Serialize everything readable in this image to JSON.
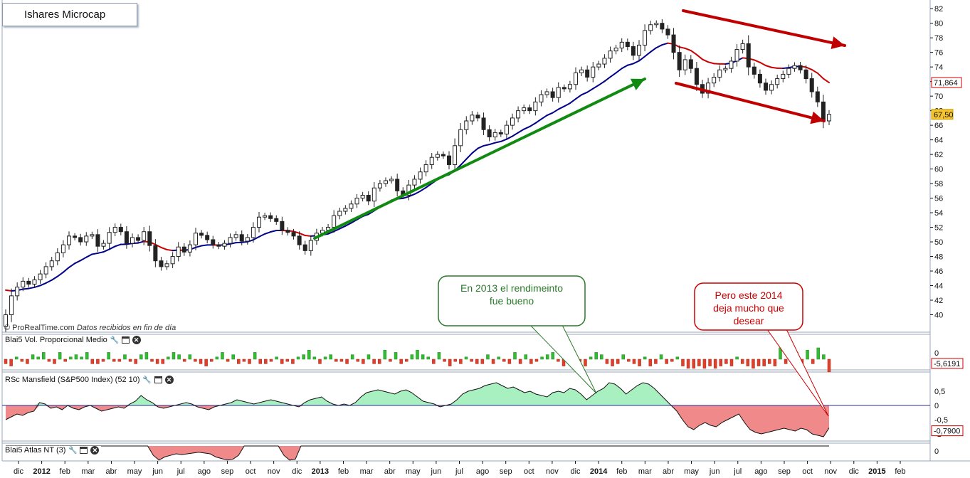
{
  "title": "Ishares Microcap",
  "watermark": {
    "brand": "© ProRealTime.com",
    "note": "Datos recibidos en fin de día"
  },
  "colors": {
    "up": "#ffffff",
    "down": "#222222",
    "ma_up": "#cc0000",
    "ma_down": "#00008b",
    "uptrend_arrow": "#108a10",
    "downtrend_arrows": "#c00000",
    "vol_pos": "#33bb33",
    "vol_neg": "#e0402a",
    "rsc_pos": "#a8f0c0",
    "rsc_neg": "#f08a8a",
    "callout_green": "#2a7a2a",
    "callout_red": "#cc0000"
  },
  "callouts": [
    {
      "text": "En 2013 el rendimeinto fue bueno",
      "color": "green"
    },
    {
      "text": "Pero este 2014 deja mucho que desear",
      "color": "red"
    }
  ],
  "panels": {
    "volume": {
      "label": "Blai5 Vol. Proporcional Medio",
      "zero_label": "0",
      "value_label": "-5,6191"
    },
    "rsc": {
      "label": "RSc Mansfield (S&P500 Index) (52 10)",
      "ticks": [
        "0,5",
        "0",
        "-0,5",
        "-1"
      ],
      "value_label": "-0,7900"
    },
    "atlas": {
      "label": "Blai5 Atlas NT (3)",
      "zero_label": "0"
    }
  },
  "price_labels": {
    "ma_value": "71,864",
    "last_close": "67,50"
  },
  "chart_data": [
    {
      "type": "candlestick",
      "title": "Ishares Microcap",
      "ylim": [
        38,
        82.8
      ],
      "yticks": [
        40,
        42,
        44,
        46,
        48,
        50,
        52,
        54,
        56,
        58,
        60,
        62,
        64,
        66,
        68,
        70,
        72,
        74,
        76,
        78,
        80,
        82
      ],
      "x_axis_labels": [
        "dic",
        "2012",
        "feb",
        "mar",
        "abr",
        "may",
        "jun",
        "jul",
        "ago",
        "sep",
        "oct",
        "nov",
        "dic",
        "2013",
        "feb",
        "mar",
        "abr",
        "may",
        "jun",
        "jul",
        "ago",
        "sep",
        "oct",
        "nov",
        "dic",
        "2014",
        "feb",
        "mar",
        "abr",
        "may",
        "jun",
        "jul",
        "ago",
        "sep",
        "oct",
        "nov",
        "dic",
        "2015",
        "feb"
      ],
      "bold_labels": [
        "2012",
        "2013",
        "2014",
        "2015"
      ],
      "closes": [
        40.0,
        42.6,
        43.8,
        44.6,
        44.2,
        44.8,
        45.6,
        46.6,
        47.4,
        48.5,
        49.6,
        50.8,
        50.6,
        50.0,
        50.8,
        51.0,
        49.4,
        49.8,
        51.3,
        52.0,
        51.4,
        49.8,
        50.6,
        50.2,
        51.4,
        49.5,
        47.4,
        46.6,
        47.0,
        48.0,
        49.3,
        48.6,
        49.6,
        51.2,
        50.9,
        50.3,
        49.6,
        49.4,
        49.8,
        50.6,
        51.0,
        50.1,
        50.6,
        52.0,
        53.4,
        53.6,
        53.2,
        52.8,
        51.6,
        51.3,
        50.8,
        49.6,
        48.8,
        50.2,
        51.2,
        51.6,
        52.0,
        53.6,
        54.2,
        54.6,
        55.2,
        56.0,
        56.4,
        55.6,
        57.4,
        58.0,
        58.4,
        58.6,
        57.0,
        56.4,
        57.8,
        58.6,
        59.6,
        60.6,
        61.6,
        62.0,
        61.8,
        60.6,
        63.2,
        65.4,
        66.6,
        67.4,
        67.0,
        65.4,
        64.4,
        65.0,
        64.8,
        66.0,
        67.0,
        68.0,
        68.4,
        68.0,
        69.2,
        70.2,
        70.6,
        69.8,
        71.2,
        71.0,
        71.6,
        73.2,
        73.6,
        72.6,
        74.0,
        74.4,
        75.2,
        76.2,
        76.6,
        77.4,
        76.8,
        75.6,
        77.0,
        79.0,
        79.8,
        80.0,
        79.2,
        78.4,
        76.0,
        73.6,
        75.0,
        73.8,
        71.6,
        70.4,
        71.8,
        72.6,
        73.6,
        73.8,
        74.8,
        76.4,
        77.2,
        74.0,
        73.0,
        71.8,
        70.8,
        71.6,
        72.4,
        73.0,
        73.8,
        74.2,
        73.6,
        72.4,
        70.6,
        69.2,
        66.6,
        67.5
      ],
      "moving_average": {
        "from_value": 43.9,
        "to_value": 71.864
      },
      "annotations": [
        "uptrend arrow (green) spring 2013 to early 2014",
        "downtrend channel arrows (red) 2014"
      ]
    },
    {
      "type": "bar",
      "title": "Blai5 Vol. Proporcional Medio",
      "ylim": [
        -10,
        12
      ],
      "values": [
        -2,
        -3,
        1,
        -1,
        -2,
        2,
        1,
        3,
        -1,
        -2,
        3,
        -1,
        1,
        2,
        1,
        3,
        -2,
        -2,
        -1,
        3,
        -1,
        -1,
        2,
        -1,
        -2,
        2,
        3,
        -1,
        -2,
        -2,
        1,
        3,
        2,
        -1,
        2,
        -1,
        -2,
        -3,
        -1,
        1,
        3,
        -1,
        2,
        -2,
        -1,
        -2,
        3,
        -2,
        -2,
        -1,
        1,
        -2,
        -1,
        -2,
        1,
        2,
        4,
        1,
        -2,
        1,
        2,
        -1,
        -1,
        -2,
        2,
        -1,
        -2,
        2,
        -2,
        -2,
        4,
        -1,
        3,
        -2,
        -1,
        2,
        4,
        2,
        1,
        -2,
        3,
        -1,
        -3,
        -1,
        -2,
        1,
        -1,
        -2,
        -2,
        2,
        -2,
        1,
        -1,
        -2,
        3,
        -2,
        2,
        -2,
        -1,
        1,
        2,
        3,
        -1,
        -3,
        -2,
        2,
        -1,
        -3,
        1,
        3,
        2,
        -2,
        -3,
        -2,
        2,
        -1,
        -2,
        -3,
        1,
        -3,
        -2,
        2,
        -2,
        -1,
        1,
        -3,
        -4,
        -4,
        -3,
        -4,
        -3,
        -4,
        -3,
        -2,
        -3,
        1,
        -2,
        -3,
        -4,
        -3,
        -3,
        -2,
        -3,
        5,
        -2,
        -1,
        3,
        -2,
        4,
        -2,
        5,
        2,
        -5.6
      ]
    },
    {
      "type": "area",
      "title": "RSc Mansfield (S&P500 Index) (52 10)",
      "ylim": [
        -1.2,
        0.8
      ],
      "values": [
        -0.5,
        -0.4,
        -0.3,
        -0.35,
        -0.25,
        -0.2,
        0.1,
        0.05,
        -0.1,
        -0.05,
        -0.15,
        0.0,
        -0.1,
        -0.15,
        -0.05,
        0.0,
        -0.1,
        -0.2,
        -0.15,
        -0.1,
        -0.05,
        -0.1,
        0.05,
        0.15,
        0.35,
        0.2,
        0.1,
        -0.05,
        -0.1,
        -0.05,
        0.0,
        0.05,
        0.1,
        0.05,
        -0.05,
        -0.1,
        -0.15,
        -0.05,
        0.0,
        0.05,
        0.1,
        0.2,
        0.15,
        0.1,
        0.05,
        0.1,
        0.15,
        0.2,
        0.15,
        0.1,
        0.05,
        0.0,
        -0.05,
        0.1,
        0.2,
        0.25,
        0.3,
        0.15,
        0.05,
        0.0,
        0.05,
        0.0,
        0.1,
        0.3,
        0.45,
        0.5,
        0.55,
        0.5,
        0.45,
        0.4,
        0.5,
        0.55,
        0.45,
        0.3,
        0.15,
        0.1,
        0.05,
        -0.05,
        0.0,
        0.05,
        0.2,
        0.4,
        0.5,
        0.55,
        0.6,
        0.7,
        0.75,
        0.8,
        0.7,
        0.6,
        0.65,
        0.55,
        0.45,
        0.5,
        0.4,
        0.35,
        0.3,
        0.45,
        0.5,
        0.45,
        0.6,
        0.55,
        0.4,
        0.2,
        0.35,
        0.5,
        0.6,
        0.8,
        0.75,
        0.6,
        0.4,
        0.55,
        0.7,
        0.8,
        0.75,
        0.6,
        0.4,
        0.2,
        0.0,
        -0.2,
        -0.5,
        -0.75,
        -0.85,
        -0.7,
        -0.6,
        -0.7,
        -0.75,
        -0.6,
        -0.5,
        -0.4,
        -0.3,
        -0.6,
        -0.85,
        -0.95,
        -1.0,
        -0.95,
        -0.9,
        -0.85,
        -0.8,
        -0.85,
        -0.9,
        -0.8,
        -0.85,
        -1.0,
        -1.05,
        -1.1,
        -0.79
      ]
    },
    {
      "type": "area",
      "title": "Blai5 Atlas NT (3)",
      "ylim": [
        -1,
        1
      ],
      "values": [
        0,
        0,
        0,
        0,
        0,
        0,
        0,
        0,
        0,
        0,
        0,
        0,
        0,
        0,
        0,
        0,
        0,
        0,
        0,
        0,
        0,
        0,
        0,
        0,
        0,
        0,
        -0.6,
        -0.9,
        -0.7,
        -0.6,
        -0.5,
        -0.55,
        -0.5,
        -0.45,
        -0.4,
        -0.45,
        -0.5,
        -0.7,
        -0.8,
        -0.9,
        -0.85,
        -0.6,
        0,
        0,
        0,
        0,
        0,
        0,
        0,
        -0.6,
        -0.9,
        -0.85,
        0,
        0,
        0,
        0,
        0,
        0,
        0,
        0,
        0,
        0,
        0,
        0,
        0,
        0,
        0,
        0,
        0,
        0,
        0,
        0,
        0,
        0,
        0,
        0,
        0,
        0,
        0,
        0,
        0,
        0,
        0,
        0,
        0,
        0,
        0,
        0,
        0,
        0,
        0,
        0,
        0,
        0,
        0,
        0,
        0,
        0,
        0,
        0,
        0,
        0,
        0,
        0,
        0,
        0,
        0,
        0,
        0,
        0,
        0,
        0,
        0,
        0,
        0,
        0,
        0,
        0,
        0,
        0,
        0,
        0,
        0,
        0,
        0,
        0,
        0,
        0,
        0,
        0,
        0,
        0,
        0,
        0,
        0,
        0,
        0,
        0,
        0,
        0,
        0,
        0,
        0,
        0,
        0,
        0
      ]
    }
  ]
}
